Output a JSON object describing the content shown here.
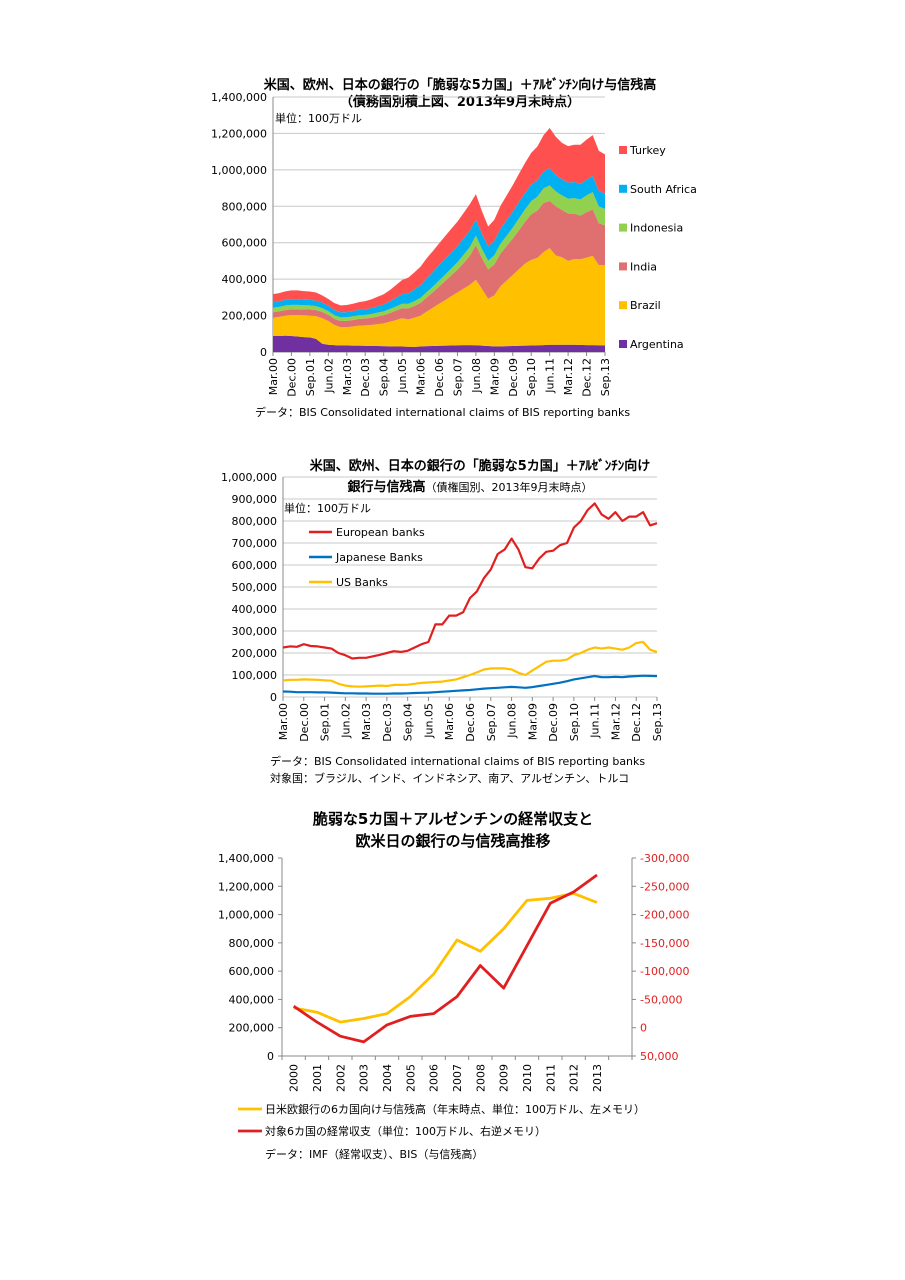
{
  "chart_data": [
    {
      "type": "area",
      "stacked": true,
      "title": "米国、欧州、日本の銀行の「脆弱な5カ国」＋ｱﾙｾﾞﾝﾁﾝ向け与信残高",
      "subtitle": "（債務国別積上図、2013年9月末時点）",
      "unit": "単位：100万ドル",
      "source": "データ：BIS Consolidated international claims of BIS reporting banks",
      "ylim": [
        0,
        1400000
      ],
      "yticks": [
        0,
        200000,
        400000,
        600000,
        800000,
        1000000,
        1200000,
        1400000
      ],
      "ytick_labels": [
        "0",
        "200,000",
        "400,000",
        "600,000",
        "800,000",
        "1,000,000",
        "1,200,000",
        "1,400,000"
      ],
      "x": [
        "Mar.00",
        "Jun.00",
        "Sep.00",
        "Dec.00",
        "Mar.01",
        "Jun.01",
        "Sep.01",
        "Dec.01",
        "Mar.02",
        "Jun.02",
        "Sep.02",
        "Dec.02",
        "Mar.03",
        "Jun.03",
        "Sep.03",
        "Dec.03",
        "Mar.04",
        "Jun.04",
        "Sep.04",
        "Dec.04",
        "Mar.05",
        "Jun.05",
        "Sep.05",
        "Dec.05",
        "Mar.06",
        "Jun.06",
        "Sep.06",
        "Dec.06",
        "Mar.07",
        "Jun.07",
        "Sep.07",
        "Dec.07",
        "Mar.08",
        "Jun.08",
        "Sep.08",
        "Dec.08",
        "Mar.09",
        "Jun.09",
        "Sep.09",
        "Dec.09",
        "Mar.10",
        "Jun.10",
        "Sep.10",
        "Dec.10",
        "Mar.11",
        "Jun.11",
        "Sep.11",
        "Dec.11",
        "Mar.12",
        "Jun.12",
        "Sep.12",
        "Dec.12",
        "Mar.13",
        "Jun.13",
        "Sep.13"
      ],
      "x_tick_labels": [
        "Mar.00",
        "Dec.00",
        "Sep.01",
        "Jun.02",
        "Mar.03",
        "Dec.03",
        "Sep.04",
        "Jun.05",
        "Mar.06",
        "Dec.06",
        "Sep.07",
        "Jun.08",
        "Mar.09",
        "Dec.09",
        "Sep.10",
        "Jun.11",
        "Mar.12",
        "Dec.12",
        "Sep.13"
      ],
      "series": [
        {
          "name": "Argentina",
          "color": "#7030a0",
          "values": [
            88000,
            88000,
            90000,
            88000,
            85000,
            82000,
            80000,
            72000,
            45000,
            40000,
            38000,
            36000,
            36000,
            35000,
            35000,
            34000,
            33000,
            33000,
            32000,
            31000,
            30000,
            30000,
            29000,
            28000,
            30000,
            32000,
            33000,
            34000,
            35000,
            36000,
            37000,
            38000,
            38000,
            37000,
            35000,
            33000,
            31000,
            31000,
            32000,
            33000,
            34000,
            35000,
            36000,
            37000,
            38000,
            40000,
            40000,
            40000,
            40000,
            40000,
            39000,
            38000,
            38000,
            37000,
            36000
          ]
        },
        {
          "name": "Brazil",
          "color": "#ffc000",
          "values": [
            100000,
            105000,
            110000,
            115000,
            118000,
            120000,
            120000,
            125000,
            140000,
            130000,
            110000,
            100000,
            100000,
            105000,
            110000,
            112000,
            115000,
            120000,
            125000,
            135000,
            145000,
            155000,
            150000,
            160000,
            170000,
            190000,
            210000,
            230000,
            250000,
            270000,
            290000,
            310000,
            330000,
            360000,
            310000,
            260000,
            280000,
            330000,
            360000,
            390000,
            420000,
            450000,
            470000,
            480000,
            510000,
            530000,
            490000,
            480000,
            460000,
            470000,
            470000,
            480000,
            490000,
            440000,
            440000
          ]
        },
        {
          "name": "India",
          "color": "#e07070",
          "values": [
            30000,
            30000,
            30000,
            32000,
            32000,
            32000,
            33000,
            33000,
            35000,
            34000,
            34000,
            34000,
            35000,
            36000,
            37000,
            38000,
            40000,
            42000,
            45000,
            48000,
            52000,
            56000,
            60000,
            65000,
            70000,
            78000,
            85000,
            95000,
            105000,
            115000,
            125000,
            140000,
            160000,
            190000,
            170000,
            160000,
            170000,
            180000,
            190000,
            200000,
            215000,
            230000,
            250000,
            260000,
            270000,
            260000,
            270000,
            260000,
            260000,
            250000,
            240000,
            250000,
            255000,
            230000,
            220000
          ]
        },
        {
          "name": "Indonesia",
          "color": "#92d050",
          "values": [
            25000,
            25000,
            25000,
            24000,
            24000,
            23000,
            23000,
            22000,
            21000,
            20000,
            20000,
            20000,
            20000,
            20000,
            20000,
            20000,
            20000,
            21000,
            21000,
            22000,
            23000,
            24000,
            25000,
            26000,
            27000,
            29000,
            31000,
            33000,
            35000,
            38000,
            41000,
            45000,
            48000,
            52000,
            50000,
            48000,
            50000,
            53000,
            56000,
            60000,
            64000,
            68000,
            72000,
            76000,
            80000,
            85000,
            82000,
            80000,
            82000,
            85000,
            88000,
            92000,
            95000,
            92000,
            90000
          ]
        },
        {
          "name": "South Africa",
          "color": "#00b0f0",
          "values": [
            30000,
            30000,
            31000,
            31000,
            31000,
            30000,
            30000,
            30000,
            30000,
            29000,
            28000,
            28000,
            28000,
            29000,
            30000,
            31000,
            33000,
            35000,
            38000,
            42000,
            47000,
            52000,
            58000,
            64000,
            70000,
            76000,
            80000,
            84000,
            86000,
            88000,
            88000,
            90000,
            90000,
            88000,
            82000,
            78000,
            80000,
            83000,
            86000,
            88000,
            90000,
            90000,
            90000,
            90000,
            92000,
            95000,
            90000,
            88000,
            88000,
            88000,
            86000,
            86000,
            88000,
            85000,
            84000
          ]
        },
        {
          "name": "Turkey",
          "color": "#ff5050",
          "values": [
            45000,
            45000,
            47000,
            48000,
            48000,
            47000,
            46000,
            45000,
            40000,
            38000,
            38000,
            38000,
            39000,
            40000,
            42000,
            44000,
            48000,
            52000,
            56000,
            62000,
            70000,
            78000,
            86000,
            94000,
            102000,
            110000,
            115000,
            120000,
            125000,
            130000,
            135000,
            140000,
            145000,
            140000,
            125000,
            110000,
            115000,
            125000,
            135000,
            145000,
            155000,
            165000,
            175000,
            185000,
            200000,
            220000,
            210000,
            200000,
            200000,
            205000,
            215000,
            220000,
            225000,
            220000,
            215000
          ]
        }
      ]
    },
    {
      "type": "line",
      "title": "米国、欧州、日本の銀行の「脆弱な5カ国」＋ｱﾙｾﾞﾝﾁﾝ向け",
      "subtitle_bold": "銀行与信残高",
      "subtitle": "（債権国別、2013年9月末時点）",
      "unit": "単位：100万ドル",
      "source": "データ：BIS Consolidated international claims of BIS reporting banks",
      "note": "対象国：ブラジル、インド、インドネシア、南ア、アルゼンチン、トルコ",
      "ylim": [
        0,
        1000000
      ],
      "yticks": [
        0,
        100000,
        200000,
        300000,
        400000,
        500000,
        600000,
        700000,
        800000,
        900000,
        1000000
      ],
      "ytick_labels": [
        "0",
        "100,000",
        "200,000",
        "300,000",
        "400,000",
        "500,000",
        "600,000",
        "700,000",
        "800,000",
        "900,000",
        "1,000,000"
      ],
      "x_tick_labels": [
        "Mar.00",
        "Dec.00",
        "Sep.01",
        "Jun.02",
        "Mar.03",
        "Dec.03",
        "Sep.04",
        "Jun.05",
        "Mar.06",
        "Dec.06",
        "Sep.07",
        "Jun.08",
        "Mar.09",
        "Dec.09",
        "Sep.10",
        "Jun.11",
        "Mar.12",
        "Dec.12",
        "Sep.13"
      ],
      "series": [
        {
          "name": "European banks",
          "color": "#e02020",
          "values": [
            225000,
            230000,
            228000,
            240000,
            232000,
            230000,
            225000,
            220000,
            200000,
            190000,
            175000,
            178000,
            178000,
            185000,
            192000,
            200000,
            208000,
            205000,
            210000,
            225000,
            240000,
            250000,
            330000,
            330000,
            370000,
            370000,
            385000,
            450000,
            480000,
            540000,
            580000,
            650000,
            670000,
            720000,
            670000,
            590000,
            585000,
            630000,
            660000,
            665000,
            690000,
            700000,
            770000,
            800000,
            850000,
            880000,
            830000,
            810000,
            840000,
            800000,
            820000,
            820000,
            840000,
            780000,
            790000
          ]
        },
        {
          "name": "Japanese Banks",
          "color": "#0070c0",
          "values": [
            25000,
            24000,
            22000,
            22000,
            22000,
            21000,
            21000,
            20000,
            18000,
            17000,
            17000,
            16000,
            16000,
            15000,
            15000,
            15000,
            16000,
            16000,
            17000,
            18000,
            19000,
            20000,
            22000,
            24000,
            26000,
            28000,
            30000,
            32000,
            35000,
            38000,
            40000,
            42000,
            44000,
            46000,
            44000,
            42000,
            45000,
            50000,
            55000,
            60000,
            65000,
            72000,
            80000,
            85000,
            90000,
            95000,
            90000,
            90000,
            92000,
            90000,
            93000,
            95000,
            97000,
            96000,
            95000
          ]
        },
        {
          "name": "US Banks",
          "color": "#ffc000",
          "values": [
            75000,
            78000,
            78000,
            80000,
            79000,
            78000,
            76000,
            74000,
            60000,
            52000,
            48000,
            47000,
            48000,
            50000,
            52000,
            50000,
            55000,
            55000,
            56000,
            60000,
            64000,
            66000,
            68000,
            70000,
            75000,
            80000,
            90000,
            100000,
            112000,
            125000,
            130000,
            130000,
            130000,
            125000,
            110000,
            100000,
            120000,
            140000,
            160000,
            165000,
            165000,
            170000,
            190000,
            200000,
            215000,
            225000,
            220000,
            225000,
            220000,
            215000,
            225000,
            245000,
            250000,
            215000,
            205000
          ]
        }
      ]
    },
    {
      "type": "line",
      "dual_axis": true,
      "title_line1": "脆弱な5カ国＋アルゼンチンの経常収支と",
      "title_line2": "欧米日の銀行の与信残高推移",
      "source": "データ：IMF（経常収支）、BIS（与信残高）",
      "x": [
        "2000",
        "2001",
        "2002",
        "2003",
        "2004",
        "2005",
        "2006",
        "2007",
        "2008",
        "2009",
        "2010",
        "2011",
        "2012",
        "2013"
      ],
      "ylim_left": [
        0,
        1400000
      ],
      "yticks_left": [
        0,
        200000,
        400000,
        600000,
        800000,
        1000000,
        1200000,
        1400000
      ],
      "ytick_labels_left": [
        "0",
        "200,000",
        "400,000",
        "600,000",
        "800,000",
        "1,000,000",
        "1,200,000",
        "1,400,000"
      ],
      "ylim_right": [
        50000,
        -300000
      ],
      "yticks_right": [
        50000,
        0,
        -50000,
        -100000,
        -150000,
        -200000,
        -250000,
        -300000
      ],
      "ytick_labels_right": [
        "50,000",
        "0",
        "-50,000",
        "-100,000",
        "-150,000",
        "-200,000",
        "-250,000",
        "-300,000"
      ],
      "series": [
        {
          "name": "日米欧銀行の6カ国向け与信残高（年末時点、単位：100万ドル、左メモリ）",
          "color": "#ffc000",
          "axis": "left",
          "values": [
            340000,
            310000,
            240000,
            265000,
            300000,
            420000,
            580000,
            820000,
            740000,
            900000,
            1100000,
            1115000,
            1150000,
            1085000
          ]
        },
        {
          "name": "対象6カ国の経常収支（単位：100万ドル、右逆メモリ）",
          "color": "#e02020",
          "axis": "right",
          "values": [
            -38000,
            -10000,
            15000,
            25000,
            -5000,
            -20000,
            -25000,
            -55000,
            -110000,
            -70000,
            -145000,
            -220000,
            -240000,
            -270000
          ]
        }
      ]
    }
  ]
}
